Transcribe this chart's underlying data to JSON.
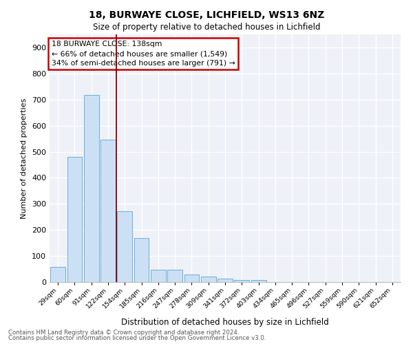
{
  "title1": "18, BURWAYE CLOSE, LICHFIELD, WS13 6NZ",
  "title2": "Size of property relative to detached houses in Lichfield",
  "xlabel": "Distribution of detached houses by size in Lichfield",
  "ylabel": "Number of detached properties",
  "categories": [
    "29sqm",
    "60sqm",
    "91sqm",
    "122sqm",
    "154sqm",
    "185sqm",
    "216sqm",
    "247sqm",
    "278sqm",
    "309sqm",
    "341sqm",
    "372sqm",
    "403sqm",
    "434sqm",
    "465sqm",
    "496sqm",
    "527sqm",
    "559sqm",
    "590sqm",
    "621sqm",
    "652sqm"
  ],
  "values": [
    57,
    480,
    718,
    545,
    272,
    170,
    47,
    47,
    30,
    20,
    14,
    8,
    8,
    0,
    0,
    0,
    0,
    0,
    0,
    0,
    0
  ],
  "bar_color": "#cce0f5",
  "bar_edge_color": "#6baed6",
  "vline_x": 3.5,
  "vline_color": "#8b0000",
  "annotation_line1": "18 BURWAYE CLOSE: 138sqm",
  "annotation_line2": "← 66% of detached houses are smaller (1,549)",
  "annotation_line3": "34% of semi-detached houses are larger (791) →",
  "annotation_box_color": "#ffffff",
  "annotation_box_edge": "#cc0000",
  "ylim": [
    0,
    950
  ],
  "yticks": [
    0,
    100,
    200,
    300,
    400,
    500,
    600,
    700,
    800,
    900
  ],
  "footer1": "Contains HM Land Registry data © Crown copyright and database right 2024.",
  "footer2": "Contains public sector information licensed under the Open Government Licence v3.0.",
  "plot_bg": "#eef2f8"
}
